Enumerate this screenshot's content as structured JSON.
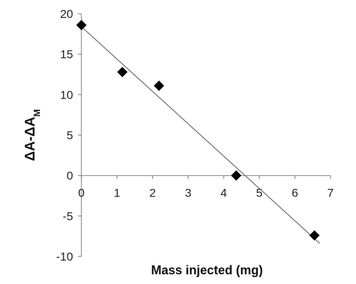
{
  "chart_data": {
    "type": "scatter",
    "title": "",
    "xlabel": "Mass injected (mg)",
    "ylabel": {
      "main": "ΔA-ΔA",
      "subscript": "M"
    },
    "xlim": [
      0,
      7
    ],
    "ylim": [
      -10,
      20
    ],
    "xticks": [
      0,
      1,
      2,
      3,
      4,
      5,
      6,
      7
    ],
    "yticks": [
      -10,
      -5,
      0,
      5,
      10,
      15,
      20
    ],
    "grid": false,
    "legend": "none",
    "series": [
      {
        "marker": "diamond",
        "color": "#000000",
        "x": [
          0,
          1.15,
          2.18,
          4.35,
          6.55
        ],
        "y": [
          18.6,
          12.8,
          11.1,
          0.0,
          -7.4
        ]
      }
    ],
    "trendline": {
      "type": "linear",
      "color": "#666666",
      "slope": -4.0,
      "intercept": 18.4
    }
  }
}
